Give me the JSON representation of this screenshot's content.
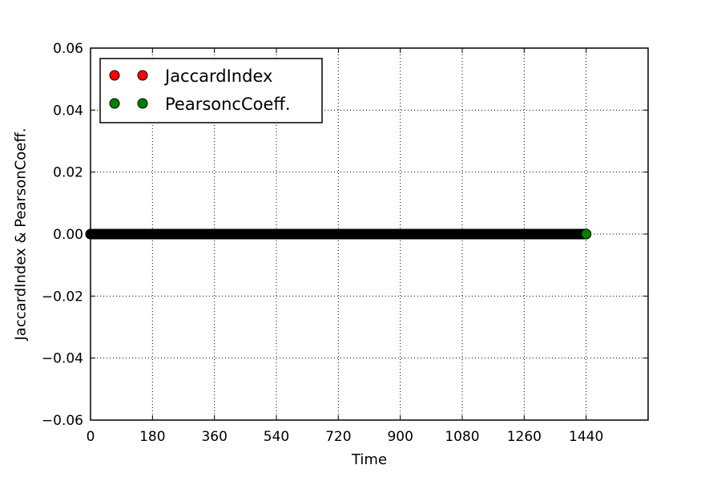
{
  "chart_data": {
    "type": "scatter",
    "title": "",
    "xlabel": "Time",
    "ylabel": "JaccardIndex  &  PearsonCoeff.",
    "xlim": [
      0,
      1620
    ],
    "ylim": [
      -0.06,
      0.06
    ],
    "x_ticks": [
      0,
      180,
      360,
      540,
      720,
      900,
      1080,
      1260,
      1440
    ],
    "x_tick_labels": [
      "0",
      "180",
      "360",
      "540",
      "720",
      "900",
      "1080",
      "1260",
      "1440"
    ],
    "y_ticks": [
      -0.06,
      -0.04,
      -0.02,
      0.0,
      0.02,
      0.04,
      0.06
    ],
    "y_tick_labels": [
      "−0.06",
      "−0.04",
      "−0.02",
      "0.00",
      "0.02",
      "0.04",
      "0.06"
    ],
    "grid": true,
    "legend_position": "top-left",
    "series": [
      {
        "name": "JaccardIndex",
        "color": "#ff0000",
        "x_range": [
          0,
          1440
        ],
        "step": 1,
        "y": 0.0
      },
      {
        "name": "PearsoncCoeff.",
        "color": "#008000",
        "x_range": [
          0,
          1440
        ],
        "step": 1,
        "y": 0.0
      }
    ]
  }
}
